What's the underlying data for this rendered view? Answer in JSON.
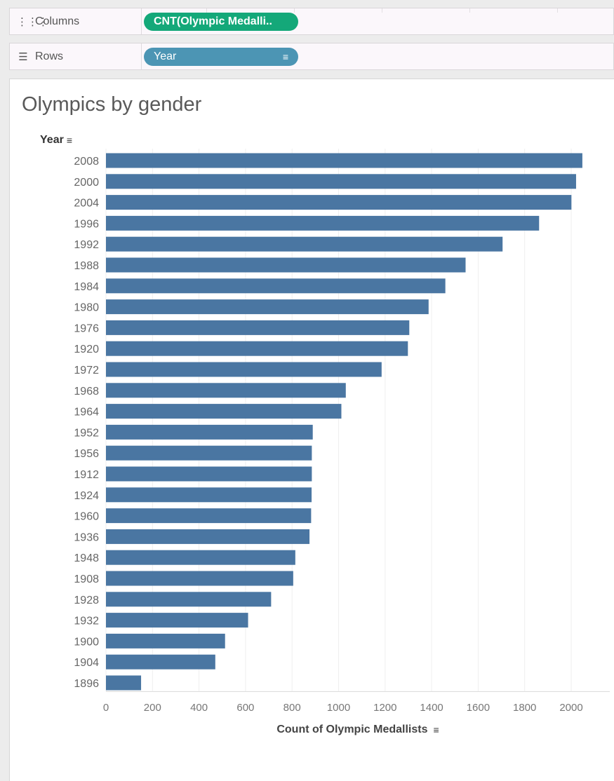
{
  "shelves": {
    "columns": {
      "label": "Columns",
      "icon": "columns-icon",
      "pill": "CNT(Olympic Medalli.."
    },
    "rows": {
      "label": "Rows",
      "icon": "rows-icon",
      "pill": "Year"
    }
  },
  "colors": {
    "bar": "#4a76a2",
    "columns_pill": "#14a879",
    "rows_pill": "#4c95b4"
  },
  "chart_data": {
    "type": "bar",
    "orientation": "horizontal",
    "title": "Olympics by gender",
    "ylabel": "Year",
    "xlabel": "Count of Olympic Medallists",
    "categories": [
      "2008",
      "2000",
      "2004",
      "1996",
      "1992",
      "1988",
      "1984",
      "1980",
      "1976",
      "1920",
      "1972",
      "1968",
      "1964",
      "1952",
      "1956",
      "1912",
      "1924",
      "1960",
      "1936",
      "1948",
      "1908",
      "1928",
      "1932",
      "1900",
      "1904",
      "1896"
    ],
    "values": [
      2048,
      2021,
      2001,
      1862,
      1705,
      1546,
      1459,
      1387,
      1304,
      1298,
      1185,
      1031,
      1012,
      889,
      885,
      885,
      884,
      882,
      875,
      814,
      805,
      710,
      611,
      512,
      470,
      151
    ],
    "xlim": [
      0,
      2150
    ],
    "xticks": [
      0,
      200,
      400,
      600,
      800,
      1000,
      1200,
      1400,
      1600,
      1800,
      2000
    ],
    "grid": true
  }
}
